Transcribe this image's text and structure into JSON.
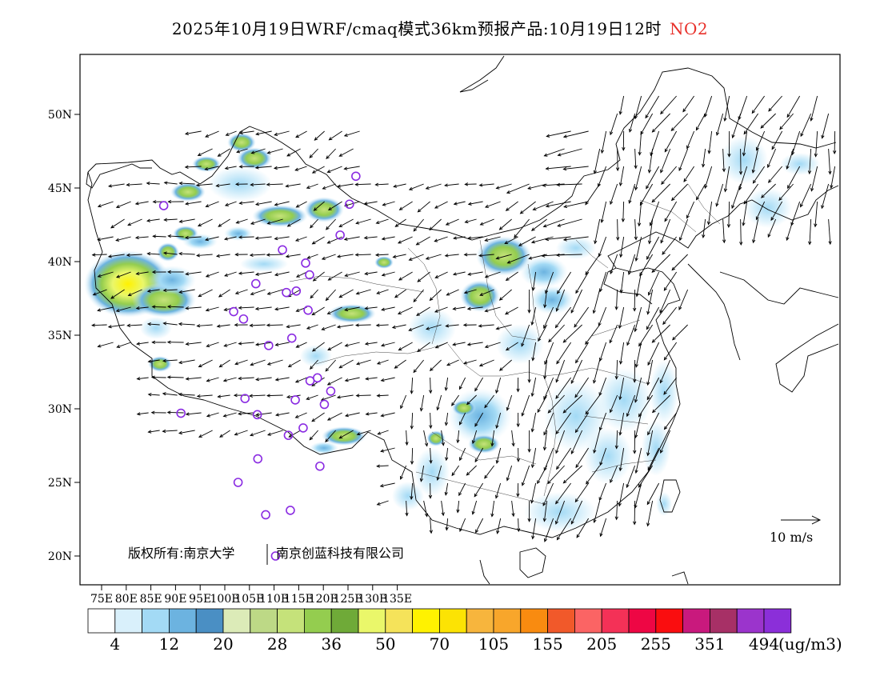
{
  "title": {
    "main": "2025年10月19日WRF/cmaq模式36km预报产品:10月19日12时",
    "pollutant": "NO2"
  },
  "axes": {
    "lat_labels": [
      "50N",
      "45N",
      "40N",
      "35N",
      "30N",
      "25N",
      "20N"
    ],
    "lon_labels": [
      "75E",
      "80E",
      "85E",
      "90E",
      "95E",
      "100E",
      "105E",
      "110E",
      "115E",
      "120E",
      "125E",
      "130E",
      "135E"
    ]
  },
  "copyright": {
    "left": "版权所有:南京大学",
    "right": "南京创蓝科技有限公司"
  },
  "wind_reference": {
    "label": "10 m/s"
  },
  "colorbar": {
    "unit": "(ug/m3)",
    "colors": [
      "#ffffff",
      "#d9f0fb",
      "#a3daf5",
      "#6cb3e0",
      "#4a8fc4",
      "#dcebb8",
      "#bdd986",
      "#c5e27a",
      "#94cd4f",
      "#6faa38",
      "#eaf76a",
      "#f5e35a",
      "#fff200",
      "#fce304",
      "#f7b53d",
      "#f8a62b",
      "#f98b10",
      "#f1592a",
      "#fb6464",
      "#f43157",
      "#ee0644",
      "#fa0d0f",
      "#c9197d",
      "#a73066",
      "#9b34cc",
      "#8b2fd9"
    ],
    "labels": [
      "4",
      "12",
      "20",
      "28",
      "36",
      "50",
      "70",
      "105",
      "155",
      "205",
      "255",
      "351",
      "494"
    ]
  },
  "stations": [
    [
      87.6,
      43.8
    ],
    [
      101.8,
      36.6
    ],
    [
      103.8,
      36.1
    ],
    [
      106.3,
      38.5
    ],
    [
      111.7,
      40.8
    ],
    [
      112.5,
      37.9
    ],
    [
      114.5,
      38.0
    ],
    [
      116.4,
      39.9
    ],
    [
      117.2,
      39.1
    ],
    [
      116.9,
      36.7
    ],
    [
      113.6,
      34.8
    ],
    [
      108.9,
      34.3
    ],
    [
      104.1,
      30.7
    ],
    [
      106.6,
      29.6
    ],
    [
      106.7,
      26.6
    ],
    [
      102.7,
      25.0
    ],
    [
      108.3,
      22.8
    ],
    [
      113.3,
      23.1
    ],
    [
      110.3,
      20.0
    ],
    [
      112.9,
      28.2
    ],
    [
      114.3,
      30.6
    ],
    [
      115.9,
      28.7
    ],
    [
      117.3,
      31.9
    ],
    [
      118.8,
      32.1
    ],
    [
      120.2,
      30.3
    ],
    [
      121.5,
      31.2
    ],
    [
      119.3,
      26.1
    ],
    [
      123.4,
      41.8
    ],
    [
      125.3,
      43.9
    ],
    [
      126.6,
      45.8
    ],
    [
      91.1,
      29.7
    ]
  ]
}
